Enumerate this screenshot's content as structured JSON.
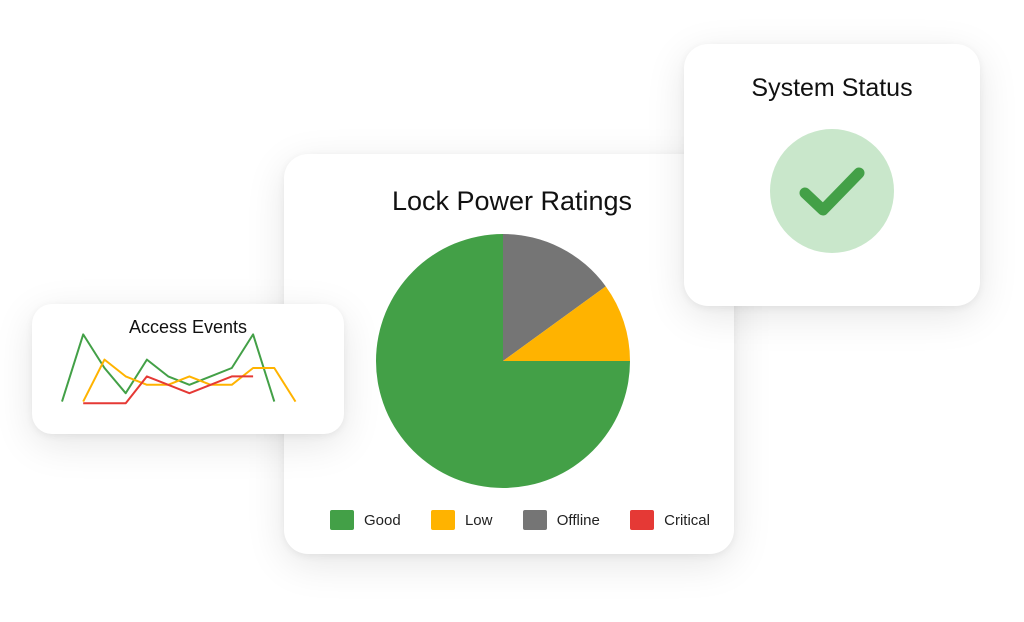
{
  "pie_card": {
    "title": "Lock Power Ratings",
    "legend": [
      {
        "label": "Good",
        "color": "#43a047"
      },
      {
        "label": "Low",
        "color": "#ffb300"
      },
      {
        "label": "Offline",
        "color": "#757575"
      },
      {
        "label": "Critical",
        "color": "#e53935"
      }
    ]
  },
  "events_card": {
    "title": "Access Events"
  },
  "status_card": {
    "title": "System Status",
    "status_icon": "checkmark-icon",
    "circle_color": "#c9e7cb",
    "check_color": "#43a047"
  },
  "chart_data": [
    {
      "type": "pie",
      "title": "Lock Power Ratings",
      "categories": [
        "Good",
        "Low",
        "Offline",
        "Critical"
      ],
      "values": [
        75,
        10,
        15,
        0
      ],
      "colors": [
        "#43a047",
        "#ffb300",
        "#757575",
        "#e53935"
      ],
      "legend_position": "bottom"
    },
    {
      "type": "line",
      "title": "Access Events",
      "x": [
        0,
        1,
        2,
        3,
        4,
        5,
        6,
        7,
        8,
        9,
        10,
        11,
        12,
        13
      ],
      "ylim": [
        0,
        10
      ],
      "series": [
        {
          "color": "#43a047",
          "values": [
            1,
            9,
            5,
            2,
            6,
            4,
            3,
            4,
            5,
            9,
            1,
            null,
            null,
            null
          ]
        },
        {
          "color": "#ffb300",
          "values": [
            null,
            1,
            6,
            4,
            3,
            3,
            4,
            3,
            3,
            5,
            5,
            1,
            null,
            null
          ]
        },
        {
          "color": "#e53935",
          "values": [
            null,
            0.8,
            0.8,
            0.8,
            4,
            3,
            2,
            3,
            4,
            4,
            null,
            null,
            null,
            null
          ]
        }
      ]
    }
  ]
}
